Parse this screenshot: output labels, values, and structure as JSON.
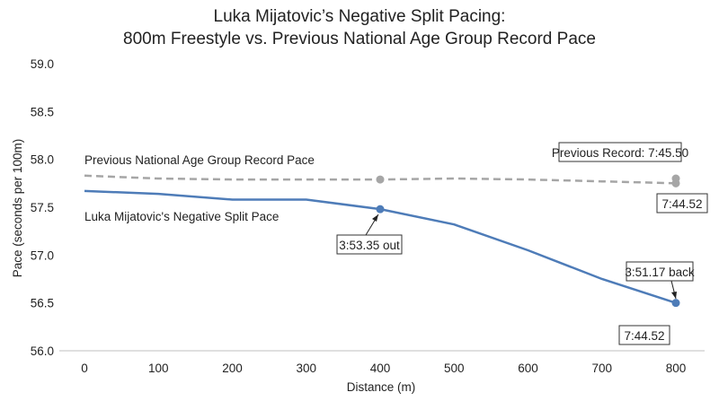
{
  "chart_data": {
    "type": "line",
    "title_lines": [
      "Luka Mijatovic’s Negative Split Pacing:",
      "800m Freestyle vs. Previous National Age Group Record Pace"
    ],
    "xlabel": "Distance (m)",
    "ylabel": "Pace (seconds per 100m)",
    "xlim": [
      0,
      800
    ],
    "ylim": [
      56.0,
      59.0
    ],
    "xticks": [
      0,
      100,
      200,
      300,
      400,
      500,
      600,
      700,
      800
    ],
    "yticks": [
      "56.0",
      "56.5",
      "57.0",
      "57.5",
      "58.0",
      "58.5",
      "59.0"
    ],
    "grid": false,
    "legend": "none",
    "series": [
      {
        "name": "Previous National Age Group Record Pace",
        "style": "dashed",
        "color": "#a6a6a6",
        "x": [
          0,
          100,
          200,
          300,
          400,
          500,
          600,
          700,
          800
        ],
        "values": [
          57.83,
          57.8,
          57.79,
          57.79,
          57.79,
          57.8,
          57.79,
          57.77,
          57.75
        ],
        "markers": [
          400,
          800
        ]
      },
      {
        "name": "Luka Mijatovic's Negative Split Pace",
        "style": "solid",
        "color": "#4e7cb8",
        "x": [
          0,
          100,
          200,
          300,
          400,
          500,
          600,
          700,
          800
        ],
        "values": [
          57.67,
          57.64,
          57.58,
          57.58,
          57.48,
          57.32,
          57.05,
          56.75,
          56.5
        ],
        "markers": [
          400,
          800
        ]
      }
    ],
    "extra_points": [
      {
        "x": 800,
        "y": 57.8,
        "color": "#a6a6a6"
      }
    ],
    "annotations": [
      {
        "text": "Previous Record: 7:45.50"
      },
      {
        "text": "7:44.52"
      },
      {
        "text": "3:53.35 out"
      },
      {
        "text": "3:51.17 back"
      },
      {
        "text": "7:44.52"
      }
    ]
  }
}
